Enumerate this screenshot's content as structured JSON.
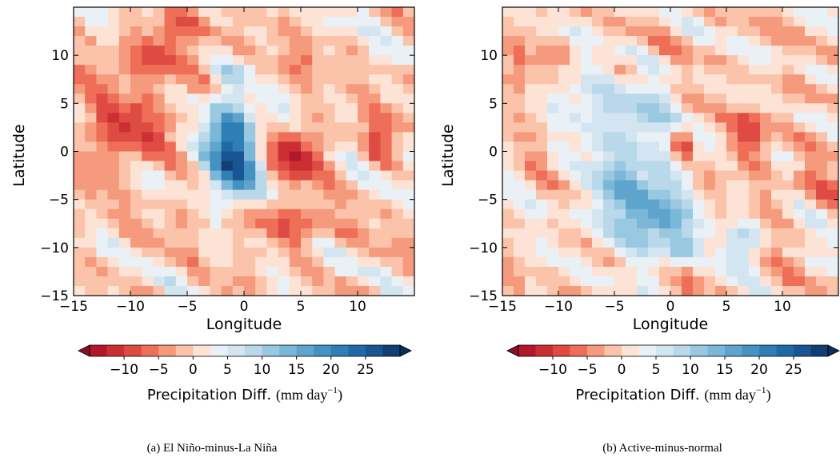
{
  "chart_data": [
    {
      "type": "heatmap",
      "title": "",
      "caption": "(a)  El Niño-minus-La Niña",
      "xlabel": "Longitude",
      "ylabel": "Latitude",
      "xlim": [
        -15,
        15
      ],
      "ylim": [
        -15,
        15
      ],
      "xticks": [
        -15,
        -10,
        -5,
        0,
        5,
        10
      ],
      "yticks": [
        10,
        5,
        0,
        -5,
        -10,
        -15
      ],
      "colorbar": {
        "label_text": "Precipitation Diff. ",
        "label_units": "(mm day",
        "label_exp": "−1",
        "label_close": ")",
        "levels": [
          -15,
          -12.5,
          -10,
          -7.5,
          -5,
          -2.5,
          0,
          2.5,
          5,
          7.5,
          10,
          12.5,
          15,
          17.5,
          20,
          22.5,
          25,
          27.5,
          30
        ],
        "ticks": [
          -10,
          -5,
          0,
          5,
          10,
          15,
          20,
          25
        ],
        "extend": "both",
        "cmap": "RdBu"
      },
      "features": [
        {
          "lon": -1.5,
          "lat": -1.5,
          "value": 25,
          "spread": [
            1.6,
            3.0
          ]
        },
        {
          "lon": -2.0,
          "lat": 2.5,
          "value": 10,
          "spread": [
            1.5,
            2.0
          ]
        },
        {
          "lon": -1.5,
          "lat": 7.5,
          "value": 8,
          "spread": [
            0.8,
            0.8
          ]
        },
        {
          "lon": -11.5,
          "lat": 1.0,
          "value": -10,
          "spread": [
            3.0,
            2.5
          ]
        },
        {
          "lon": -9.0,
          "lat": 8.5,
          "value": -8,
          "spread": [
            2.5,
            1.8
          ]
        },
        {
          "lon": -6.5,
          "lat": 12.0,
          "value": -7,
          "spread": [
            2.0,
            1.5
          ]
        },
        {
          "lon": 4.5,
          "lat": -0.5,
          "value": -12,
          "spread": [
            1.8,
            1.8
          ]
        },
        {
          "lon": 11.5,
          "lat": 0.5,
          "value": -8,
          "spread": [
            1.0,
            1.8
          ]
        },
        {
          "lon": 1.0,
          "lat": -7.5,
          "value": -7,
          "spread": [
            3.0,
            1.0
          ]
        },
        {
          "lon": 4.0,
          "lat": -9.0,
          "value": -6,
          "spread": [
            2.0,
            1.2
          ]
        },
        {
          "lon": 3.5,
          "lat": 8.0,
          "value": -5,
          "spread": [
            1.2,
            1.2
          ]
        },
        {
          "lon": -4.5,
          "lat": -5.5,
          "value": -5,
          "spread": [
            1.2,
            1.2
          ]
        }
      ]
    },
    {
      "type": "heatmap",
      "title": "",
      "caption": "(b)  Active-minus-normal",
      "xlabel": "Longitude",
      "ylabel": "Latitude",
      "xlim": [
        -15,
        15
      ],
      "ylim": [
        -15,
        15
      ],
      "xticks": [
        -15,
        -10,
        -5,
        0,
        5,
        10
      ],
      "yticks": [
        10,
        5,
        0,
        -5,
        -10,
        -15
      ],
      "colorbar": {
        "label_text": "Precipitation Diff. ",
        "label_units": "(mm day",
        "label_exp": "−1",
        "label_close": ")",
        "levels": [
          -15,
          -12.5,
          -10,
          -7.5,
          -5,
          -2.5,
          0,
          2.5,
          5,
          7.5,
          10,
          12.5,
          15,
          17.5,
          20,
          22.5,
          25,
          27.5,
          30
        ],
        "ticks": [
          -10,
          -5,
          0,
          5,
          10,
          15,
          20,
          25
        ],
        "extend": "both",
        "cmap": "RdBu"
      },
      "features": [
        {
          "lon": -3.5,
          "lat": -5.0,
          "value": 14,
          "spread": [
            3.0,
            4.0
          ]
        },
        {
          "lon": -4.0,
          "lat": 3.5,
          "value": 9,
          "spread": [
            2.5,
            2.0
          ]
        },
        {
          "lon": 0.5,
          "lat": -10.5,
          "value": 12,
          "spread": [
            1.0,
            1.0
          ]
        },
        {
          "lon": -1.0,
          "lat": -7.5,
          "value": 10,
          "spread": [
            1.5,
            1.5
          ]
        },
        {
          "lon": 6.0,
          "lat": -10.0,
          "value": 8,
          "spread": [
            1.2,
            1.5
          ]
        },
        {
          "lon": -8.0,
          "lat": 6.0,
          "value": 5,
          "spread": [
            2.0,
            2.0
          ]
        },
        {
          "lon": 0.5,
          "lat": 0.0,
          "value": -14,
          "spread": [
            0.6,
            1.3
          ]
        },
        {
          "lon": 7.0,
          "lat": 1.5,
          "value": -7,
          "spread": [
            1.5,
            2.0
          ]
        },
        {
          "lon": 3.0,
          "lat": -3.5,
          "value": -5,
          "spread": [
            1.2,
            1.2
          ]
        },
        {
          "lon": -14.0,
          "lat": 8.0,
          "value": -5,
          "spread": [
            1.5,
            2.0
          ]
        },
        {
          "lon": 12.0,
          "lat": -4.0,
          "value": -4,
          "spread": [
            2.0,
            2.0
          ]
        }
      ]
    }
  ]
}
